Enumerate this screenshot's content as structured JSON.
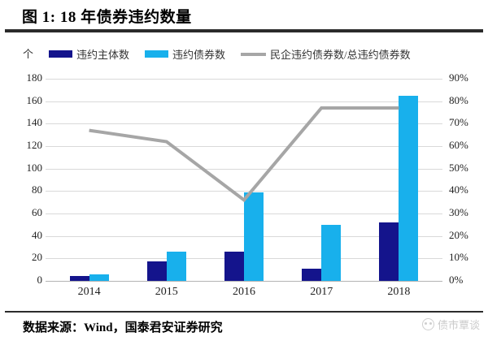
{
  "figure": {
    "title": "图 1: 18 年债券违约数量",
    "unit_label": "个",
    "source": "数据来源：Wind，国泰君安证券研究",
    "watermark": "债市覃谈"
  },
  "colors": {
    "bar_dark_blue": "#14148c",
    "bar_light_blue": "#18b0ec",
    "line_gray": "#a6a6a6",
    "gridline": "#d9d9d9",
    "rule_black": "#2b2b2b"
  },
  "chart_data": {
    "type": "bar",
    "subtype": "grouped bars with secondary-axis line",
    "categories": [
      "2014",
      "2015",
      "2016",
      "2017",
      "2018"
    ],
    "series": [
      {
        "name": "违约主体数",
        "kind": "bar",
        "axis": "left",
        "color": "#14148c",
        "values": [
          4,
          17,
          26,
          11,
          52
        ]
      },
      {
        "name": "违约债券数",
        "kind": "bar",
        "axis": "left",
        "color": "#18b0ec",
        "values": [
          6,
          26,
          79,
          50,
          165
        ]
      },
      {
        "name": "民企违约债券数/总违约债券数",
        "kind": "line",
        "axis": "right",
        "color": "#a6a6a6",
        "values": [
          67,
          62,
          36,
          77,
          77
        ]
      }
    ],
    "left_axis": {
      "min": 0,
      "max": 180,
      "step": 20,
      "ticks": [
        0,
        20,
        40,
        60,
        80,
        100,
        120,
        140,
        160,
        180
      ],
      "unit": "个"
    },
    "right_axis": {
      "min": 0,
      "max": 90,
      "step": 10,
      "ticks": [
        0,
        10,
        20,
        30,
        40,
        50,
        60,
        70,
        80,
        90
      ],
      "format": "percent"
    },
    "grid": true,
    "legend_position": "top"
  }
}
